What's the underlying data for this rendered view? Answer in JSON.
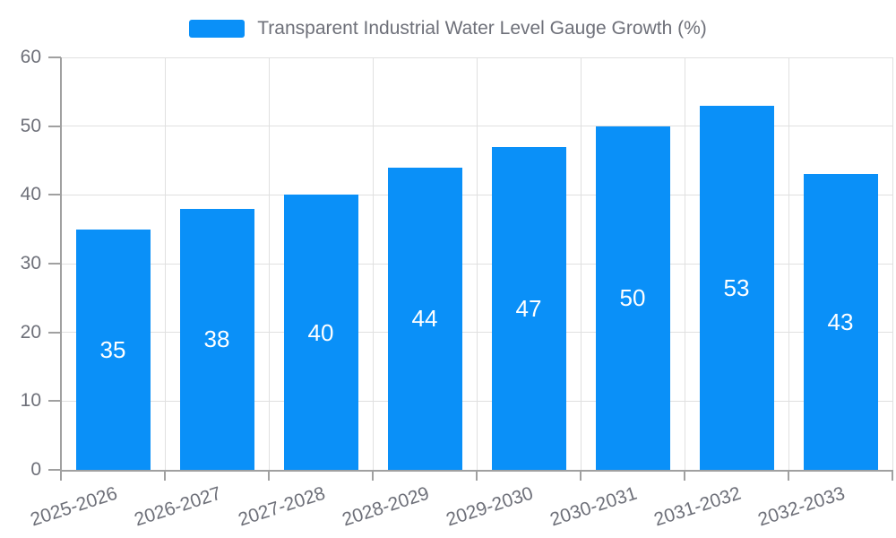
{
  "chart_data": {
    "type": "bar",
    "title": "Transparent Industrial Water Level Gauge Growth (%)",
    "categories": [
      "2025-2026",
      "2026-2027",
      "2027-2028",
      "2028-2029",
      "2029-2030",
      "2030-2031",
      "2031-2032",
      "2032-2033"
    ],
    "values": [
      35,
      38,
      40,
      44,
      47,
      50,
      53,
      43
    ],
    "series": [
      {
        "name": "Transparent Industrial Water Level Gauge Growth (%)",
        "values": [
          35,
          38,
          40,
          44,
          47,
          50,
          53,
          43
        ]
      }
    ],
    "xlabel": "",
    "ylabel": "",
    "ylim": [
      0,
      60
    ],
    "y_ticks": [
      0,
      10,
      20,
      30,
      40,
      50,
      60
    ],
    "grid": true,
    "legend_position": "top-center",
    "value_labels": "inside-center",
    "x_label_rotation_deg": 18,
    "style": {
      "bar_color": "#0a90f8",
      "grid_color": "#e0e0e0",
      "axis_color": "#a0a0a0",
      "text_color": "#6e7079",
      "value_label_color": "#ffffff",
      "background": "#ffffff"
    }
  }
}
